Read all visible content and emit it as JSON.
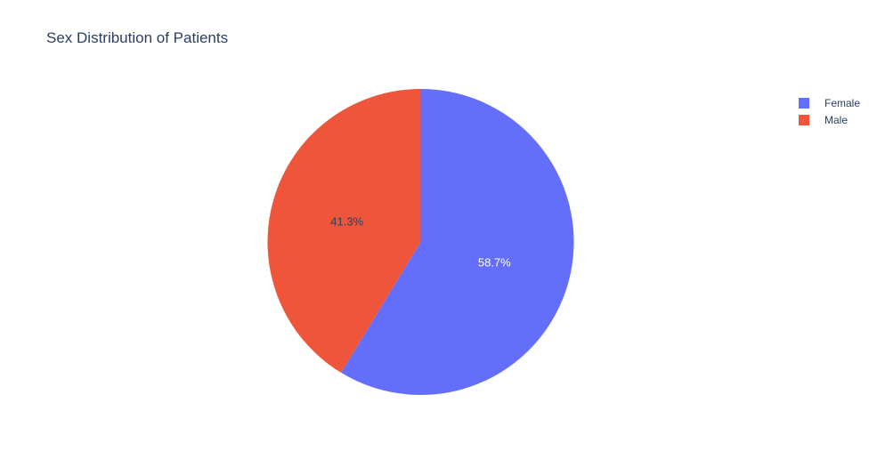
{
  "chart_data": {
    "type": "pie",
    "title": "Sex Distribution of Patients",
    "labels": [
      "Female",
      "Male"
    ],
    "values": [
      58.7,
      41.3
    ],
    "slice_text": [
      "58.7%",
      "41.3%"
    ],
    "colors": [
      "#636EFA",
      "#EF553B"
    ],
    "slice_text_colors": [
      "#ffffff",
      "#2a3f5f"
    ],
    "start_position": "top",
    "direction": "clockwise",
    "legend": {
      "position": "right",
      "entries": [
        "Female",
        "Male"
      ]
    }
  },
  "styles": {
    "background_color": "#ffffff",
    "title_color": "#2a3f5f",
    "legend_text_color": "#2a3f5f"
  }
}
